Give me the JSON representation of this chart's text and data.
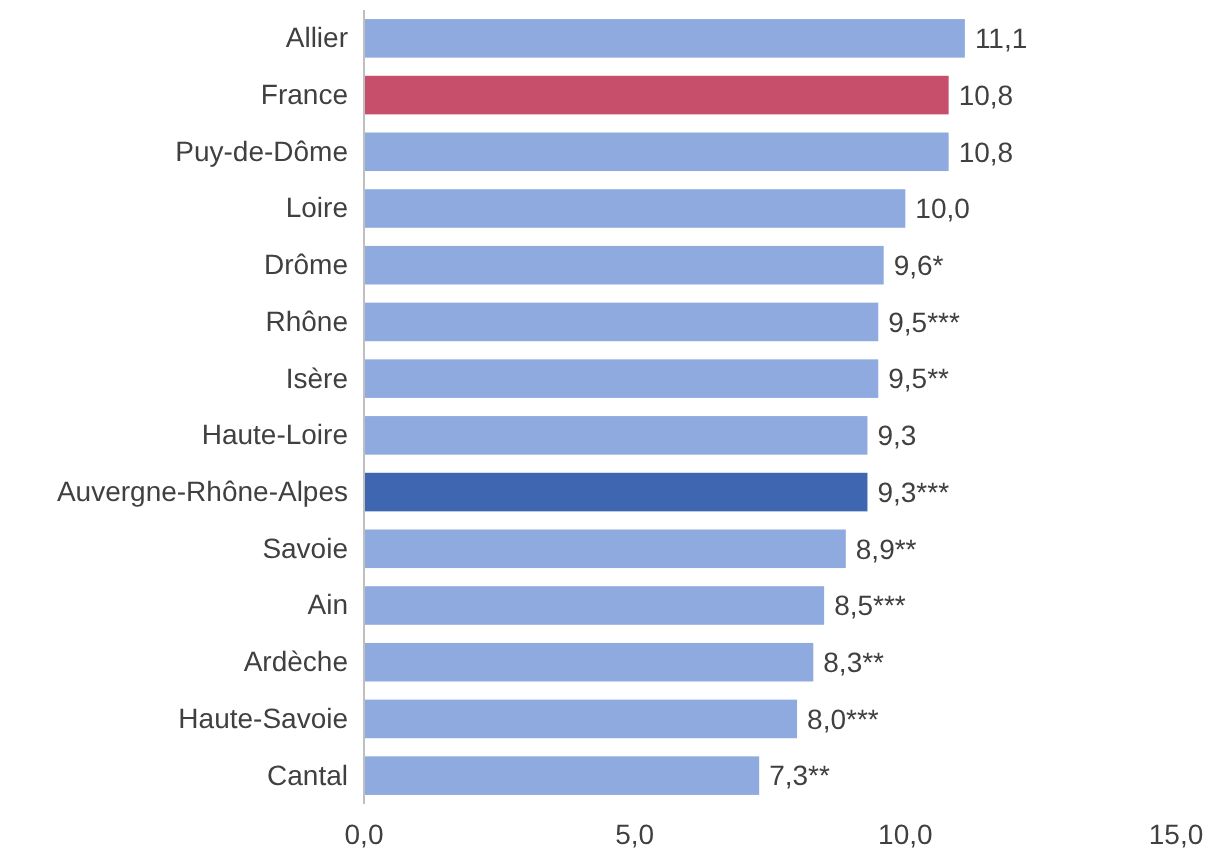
{
  "chart_data": {
    "type": "bar",
    "orientation": "horizontal",
    "categories": [
      "Allier",
      "France",
      "Puy-de-Dôme",
      "Loire",
      "Drôme",
      "Rhône",
      "Isère",
      "Haute-Loire",
      "Auvergne-Rhône-Alpes",
      "Savoie",
      "Ain",
      "Ardèche",
      "Haute-Savoie",
      "Cantal"
    ],
    "values": [
      11.1,
      10.8,
      10.8,
      10.0,
      9.6,
      9.5,
      9.5,
      9.3,
      9.3,
      8.9,
      8.5,
      8.3,
      8.0,
      7.3
    ],
    "colors": [
      "#8eaadf",
      "#c84f6c",
      "#8eaadf",
      "#8eaadf",
      "#8eaadf",
      "#8eaadf",
      "#8eaadf",
      "#8eaadf",
      "#3f67b1",
      "#8eaadf",
      "#8eaadf",
      "#8eaadf",
      "#8eaadf",
      "#8eaadf"
    ],
    "value_labels": [
      "11,1",
      "10,8",
      "10,8",
      "10,0",
      "9,6*",
      "9,5***",
      "9,5**",
      "9,3",
      "9,3***",
      "8,9**",
      "8,5***",
      "8,3**",
      "8,0***",
      "7,3**"
    ],
    "xlim": [
      0,
      15
    ],
    "xticks": [
      {
        "value": 0,
        "label": "0,0"
      },
      {
        "value": 5,
        "label": "5,0"
      },
      {
        "value": 10,
        "label": "10,0"
      },
      {
        "value": 15,
        "label": "15,0"
      }
    ],
    "grid": false
  }
}
